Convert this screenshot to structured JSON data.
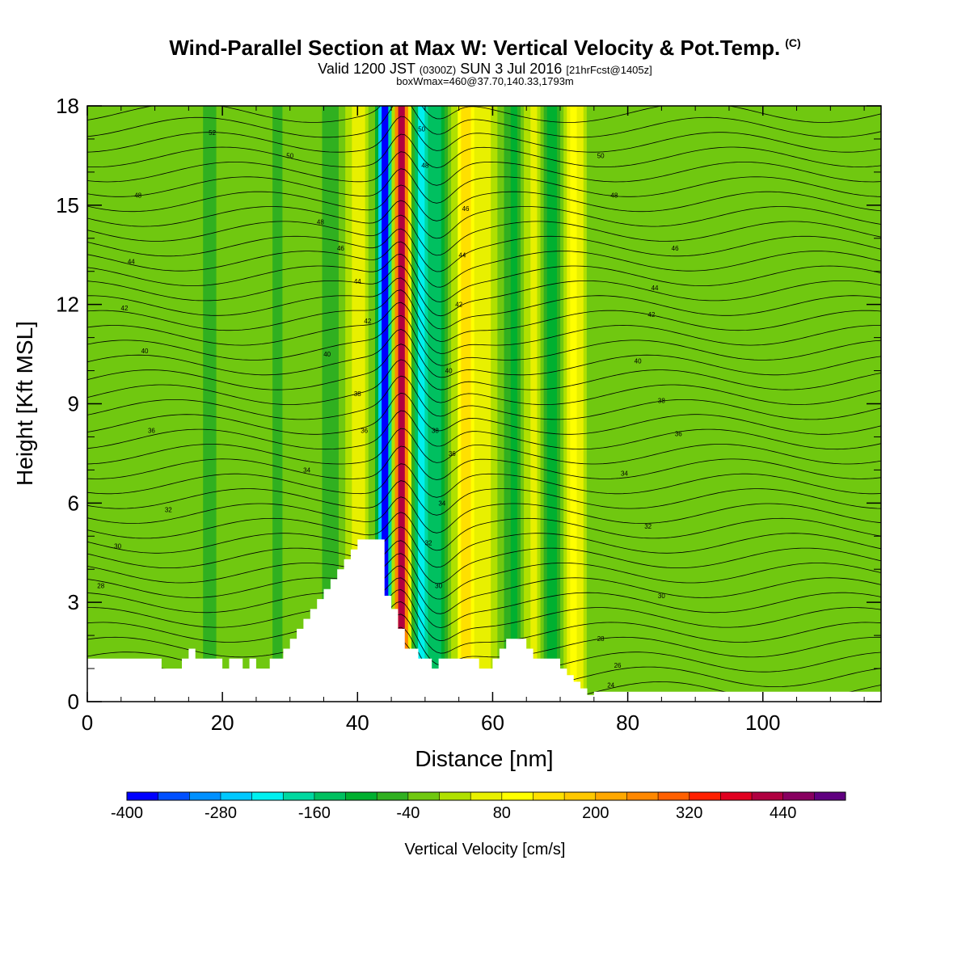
{
  "header": {
    "title": "Wind-Parallel Section at Max W: Vertical Velocity & Pot.Temp.",
    "copyright": "(C)",
    "valid_prefix": "Valid 1200 JST",
    "utc": "(0300Z)",
    "date": "SUN 3 Jul 2016",
    "forecast": "[21hrFcst@1405z]",
    "box_info": "boxWmax=460@37.70,140.33,1793m"
  },
  "chart_data": {
    "type": "heatmap",
    "title": "Wind-Parallel Section at Max W: Vertical Velocity & Pot.Temp.",
    "xlabel": "Distance [nm]",
    "ylabel": "Height [Kft MSL]",
    "xlim": [
      0,
      117.5
    ],
    "ylim": [
      0,
      18
    ],
    "x_ticks": [
      0,
      20,
      40,
      60,
      80,
      100
    ],
    "x_tick_labels": [
      "0",
      "20",
      "40",
      "60",
      "80",
      "100"
    ],
    "y_ticks": [
      0,
      3,
      6,
      9,
      12,
      15,
      18
    ],
    "y_tick_labels": [
      "0",
      "3",
      "6",
      "9",
      "12",
      "15",
      "18"
    ],
    "colorbar": {
      "label": "Vertical Velocity [cm/s]",
      "min": -400,
      "max": 520,
      "step": 40,
      "tick_values": [
        -400,
        -280,
        -160,
        -40,
        80,
        200,
        320,
        440
      ],
      "tick_labels": [
        "-400",
        "-280",
        "-160",
        "-40",
        "80",
        "200",
        "320",
        "440"
      ],
      "colors": [
        "#0000ff",
        "#0050ff",
        "#0090ff",
        "#00c8ff",
        "#00f0f0",
        "#00d8a0",
        "#00c060",
        "#00b030",
        "#30b020",
        "#70c810",
        "#b0e000",
        "#e8f000",
        "#ffff00",
        "#ffe000",
        "#ffc800",
        "#ffa800",
        "#ff8800",
        "#ff6000",
        "#ff2000",
        "#e00020",
        "#b00040",
        "#880060",
        "#600080"
      ]
    },
    "vertical_velocity_bands": [
      {
        "x": 44,
        "value": -400
      },
      {
        "x": 46.5,
        "value": 460
      },
      {
        "x": 49.5,
        "value": -200
      },
      {
        "x": 52,
        "value": -120
      },
      {
        "x": 56,
        "value": 160
      },
      {
        "x": 59,
        "value": 80
      },
      {
        "x": 63,
        "value": -80
      },
      {
        "x": 66,
        "value": 60
      },
      {
        "x": 69,
        "value": -100
      },
      {
        "x": 72,
        "value": 120
      },
      {
        "x": 40,
        "value": 90
      },
      {
        "x": 36,
        "value": -60
      },
      {
        "x": 18,
        "value": -50
      },
      {
        "x": 28,
        "value": -40
      }
    ],
    "background_value": -10,
    "terrain": {
      "x": [
        0,
        11,
        11,
        14,
        14,
        15,
        15,
        16,
        16,
        19,
        19,
        20,
        20,
        21,
        21,
        23,
        23,
        24,
        24,
        25,
        25,
        27,
        27,
        29,
        29,
        30,
        30,
        31,
        31,
        32,
        32,
        33,
        33,
        34,
        34,
        35,
        35,
        36,
        36,
        37,
        37,
        38,
        38,
        39,
        39,
        40,
        40,
        41,
        41,
        42,
        42,
        43,
        43,
        44,
        44,
        45,
        45,
        46,
        46,
        47,
        47,
        48,
        48,
        49,
        49,
        50,
        50,
        51,
        51,
        52,
        52,
        54,
        54,
        56,
        56,
        58,
        58,
        60,
        60,
        61,
        61,
        62,
        62,
        65,
        65,
        66,
        66,
        67,
        67,
        68,
        68,
        70,
        70,
        71,
        71,
        72,
        72,
        73,
        73,
        74,
        74,
        75,
        75,
        77,
        77,
        117.5
      ],
      "height_kft": [
        1.3,
        1.3,
        1.0,
        1.0,
        1.3,
        1.3,
        1.6,
        1.6,
        1.3,
        1.3,
        1.3,
        1.3,
        1.0,
        1.0,
        1.3,
        1.3,
        1.0,
        1.0,
        1.3,
        1.3,
        1.0,
        1.0,
        1.3,
        1.3,
        1.6,
        1.6,
        1.9,
        1.9,
        2.2,
        2.2,
        2.5,
        2.5,
        2.8,
        2.8,
        3.1,
        3.1,
        3.4,
        3.4,
        3.7,
        3.7,
        4.0,
        4.0,
        4.3,
        4.3,
        4.6,
        4.6,
        4.9,
        4.9,
        4.9,
        4.9,
        4.9,
        4.9,
        4.9,
        4.9,
        3.2,
        3.2,
        2.8,
        2.8,
        2.2,
        2.2,
        1.6,
        1.6,
        1.6,
        1.6,
        1.3,
        1.3,
        1.3,
        1.3,
        1.0,
        1.0,
        1.3,
        1.3,
        1.3,
        1.3,
        1.3,
        1.3,
        1.0,
        1.0,
        1.3,
        1.3,
        1.6,
        1.6,
        1.9,
        1.9,
        1.6,
        1.6,
        1.3,
        1.3,
        1.3,
        1.3,
        1.3,
        1.3,
        1.0,
        1.0,
        0.8,
        0.8,
        0.6,
        0.6,
        0.4,
        0.4,
        0.2,
        0.2,
        0.3,
        0.3,
        0.3,
        0.3
      ]
    },
    "theta_contours": {
      "unit": "C",
      "levels": [
        24,
        26,
        28,
        30,
        32,
        34,
        36,
        38,
        40,
        42,
        44,
        46,
        48,
        50,
        52
      ],
      "level_labels": [
        {
          "label": "24",
          "x": 77.5,
          "y": 0.5
        },
        {
          "label": "26",
          "x": 78.5,
          "y": 1.1
        },
        {
          "label": "28",
          "x": 2,
          "y": 3.5
        },
        {
          "label": "28",
          "x": 76,
          "y": 1.9
        },
        {
          "label": "30",
          "x": 4.5,
          "y": 4.7
        },
        {
          "label": "30",
          "x": 85,
          "y": 3.2
        },
        {
          "label": "30",
          "x": 52,
          "y": 3.5
        },
        {
          "label": "32",
          "x": 12,
          "y": 5.8
        },
        {
          "label": "32",
          "x": 83,
          "y": 5.3
        },
        {
          "label": "32",
          "x": 50.5,
          "y": 4.8
        },
        {
          "label": "34",
          "x": 32.5,
          "y": 7.0
        },
        {
          "label": "34",
          "x": 79.5,
          "y": 6.9
        },
        {
          "label": "34",
          "x": 52.5,
          "y": 6.0
        },
        {
          "label": "36",
          "x": 9.5,
          "y": 8.2
        },
        {
          "label": "36",
          "x": 87.5,
          "y": 8.1
        },
        {
          "label": "36",
          "x": 41,
          "y": 8.2
        },
        {
          "label": "36",
          "x": 54,
          "y": 7.5
        },
        {
          "label": "38",
          "x": 40,
          "y": 9.3
        },
        {
          "label": "38",
          "x": 85,
          "y": 9.1
        },
        {
          "label": "38",
          "x": 51.5,
          "y": 8.2
        },
        {
          "label": "40",
          "x": 8.5,
          "y": 10.6
        },
        {
          "label": "40",
          "x": 35.5,
          "y": 10.5
        },
        {
          "label": "40",
          "x": 81.5,
          "y": 10.3
        },
        {
          "label": "40",
          "x": 53.5,
          "y": 10.0
        },
        {
          "label": "42",
          "x": 5.5,
          "y": 11.9
        },
        {
          "label": "42",
          "x": 83.5,
          "y": 11.7
        },
        {
          "label": "42",
          "x": 55,
          "y": 12.0
        },
        {
          "label": "42",
          "x": 41.5,
          "y": 11.5
        },
        {
          "label": "44",
          "x": 6.5,
          "y": 13.3
        },
        {
          "label": "44",
          "x": 84,
          "y": 12.5
        },
        {
          "label": "44",
          "x": 40,
          "y": 12.7
        },
        {
          "label": "44",
          "x": 55.5,
          "y": 13.5
        },
        {
          "label": "46",
          "x": 87,
          "y": 13.7
        },
        {
          "label": "46",
          "x": 37.5,
          "y": 13.7
        },
        {
          "label": "46",
          "x": 56,
          "y": 14.9
        },
        {
          "label": "48",
          "x": 7.5,
          "y": 15.3
        },
        {
          "label": "48",
          "x": 34.5,
          "y": 14.5
        },
        {
          "label": "48",
          "x": 78,
          "y": 15.3
        },
        {
          "label": "48",
          "x": 50,
          "y": 16.2
        },
        {
          "label": "50",
          "x": 30,
          "y": 16.5
        },
        {
          "label": "50",
          "x": 76,
          "y": 16.5
        },
        {
          "label": "50",
          "x": 49.5,
          "y": 17.3
        },
        {
          "label": "52",
          "x": 18.5,
          "y": 17.2
        }
      ]
    },
    "grid": false,
    "legend": "colorbar-bottom"
  }
}
